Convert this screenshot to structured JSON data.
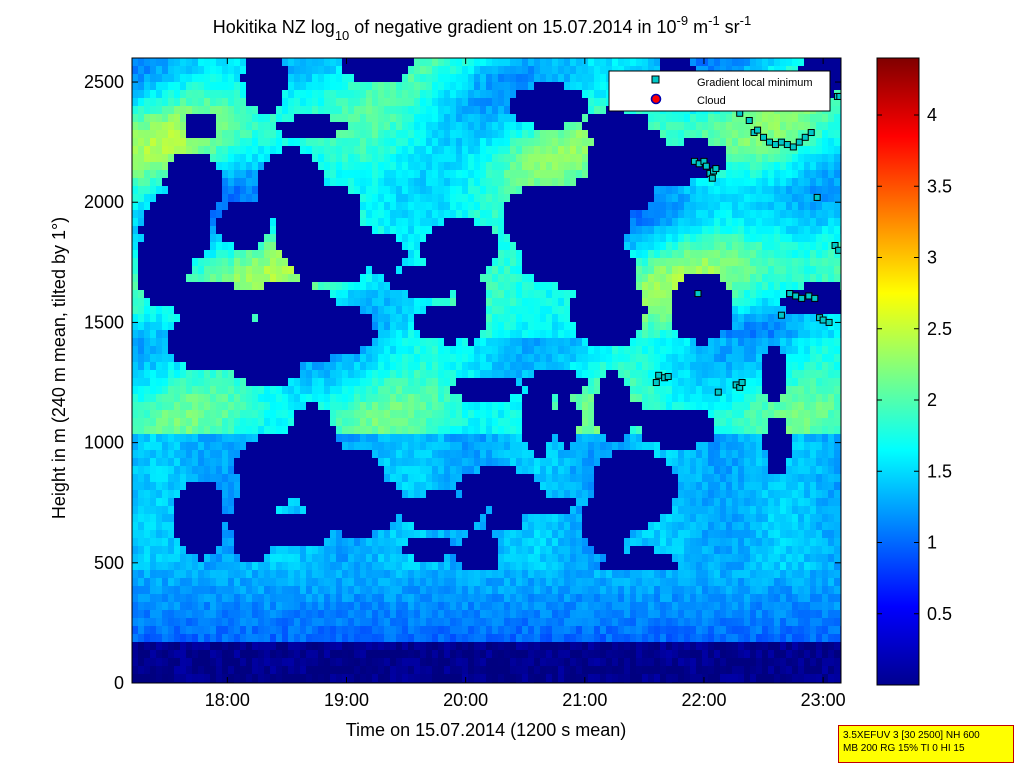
{
  "chart_data": {
    "type": "heatmap",
    "title": "Hokitika NZ log",
    "title_sub": "10",
    "title_mid": " of negative gradient on 15.07.2014 in 10",
    "title_sup1": "-9",
    "title_unit1": " m",
    "title_sup2": "-1",
    "title_unit2": " sr",
    "title_sup3": "-1",
    "xlabel": "Time on 15.07.2014 (1200 s mean)",
    "ylabel": "Height in m (240 m mean, tilted by 1°)",
    "xlim": [
      17.2,
      23.15
    ],
    "ylim": [
      0,
      2600
    ],
    "x_ticks": [
      {
        "value": 18,
        "label": "18:00"
      },
      {
        "value": 19,
        "label": "19:00"
      },
      {
        "value": 20,
        "label": "20:00"
      },
      {
        "value": 21,
        "label": "21:00"
      },
      {
        "value": 22,
        "label": "22:00"
      },
      {
        "value": 23,
        "label": "23:00"
      }
    ],
    "y_ticks": [
      {
        "value": 0,
        "label": "0"
      },
      {
        "value": 500,
        "label": "500"
      },
      {
        "value": 1000,
        "label": "1000"
      },
      {
        "value": 1500,
        "label": "1500"
      },
      {
        "value": 2000,
        "label": "2000"
      },
      {
        "value": 2500,
        "label": "2500"
      }
    ],
    "colorbar": {
      "range": [
        0,
        4.4
      ],
      "ticks": [
        {
          "value": 0.5,
          "label": "0.5"
        },
        {
          "value": 1,
          "label": "1"
        },
        {
          "value": 1.5,
          "label": "1.5"
        },
        {
          "value": 2,
          "label": "2"
        },
        {
          "value": 2.5,
          "label": "2.5"
        },
        {
          "value": 3,
          "label": "3"
        },
        {
          "value": 3.5,
          "label": "3.5"
        },
        {
          "value": 4,
          "label": "4"
        }
      ],
      "colormap": "jet"
    },
    "legend": {
      "position": "top-right",
      "entries": [
        {
          "label": "Gradient local minimum",
          "marker": "square",
          "color": "#00c8c8"
        },
        {
          "label": "Cloud",
          "marker": "circle",
          "color": "#ff0000"
        }
      ]
    },
    "gradient_local_minimum": [
      [
        21.6,
        1250
      ],
      [
        21.62,
        1280
      ],
      [
        21.67,
        1270
      ],
      [
        21.7,
        1275
      ],
      [
        21.95,
        1620
      ],
      [
        21.92,
        2170
      ],
      [
        21.96,
        2160
      ],
      [
        22.0,
        2170
      ],
      [
        22.02,
        2150
      ],
      [
        22.05,
        2120
      ],
      [
        22.07,
        2100
      ],
      [
        22.08,
        2130
      ],
      [
        22.1,
        2140
      ],
      [
        22.27,
        1240
      ],
      [
        22.3,
        1230
      ],
      [
        22.32,
        1250
      ],
      [
        22.12,
        1210
      ],
      [
        22.3,
        2370
      ],
      [
        22.38,
        2340
      ],
      [
        22.42,
        2290
      ],
      [
        22.45,
        2300
      ],
      [
        22.5,
        2270
      ],
      [
        22.55,
        2250
      ],
      [
        22.6,
        2240
      ],
      [
        22.65,
        2250
      ],
      [
        22.7,
        2240
      ],
      [
        22.75,
        2230
      ],
      [
        22.8,
        2250
      ],
      [
        22.85,
        2270
      ],
      [
        22.9,
        2290
      ],
      [
        22.65,
        1530
      ],
      [
        22.72,
        1620
      ],
      [
        22.77,
        1610
      ],
      [
        22.82,
        1600
      ],
      [
        22.88,
        1610
      ],
      [
        22.93,
        1600
      ],
      [
        22.97,
        1520
      ],
      [
        23.0,
        1510
      ],
      [
        23.05,
        1500
      ],
      [
        22.95,
        2020
      ],
      [
        23.1,
        1820
      ],
      [
        23.13,
        1800
      ],
      [
        23.12,
        2440
      ],
      [
        23.14,
        2440
      ]
    ]
  },
  "info_box": {
    "line1": "3.5XEFUV 3 [30 2500] NH 600",
    "line2": "MB 200 RG 15% TI 0 HI 15"
  }
}
